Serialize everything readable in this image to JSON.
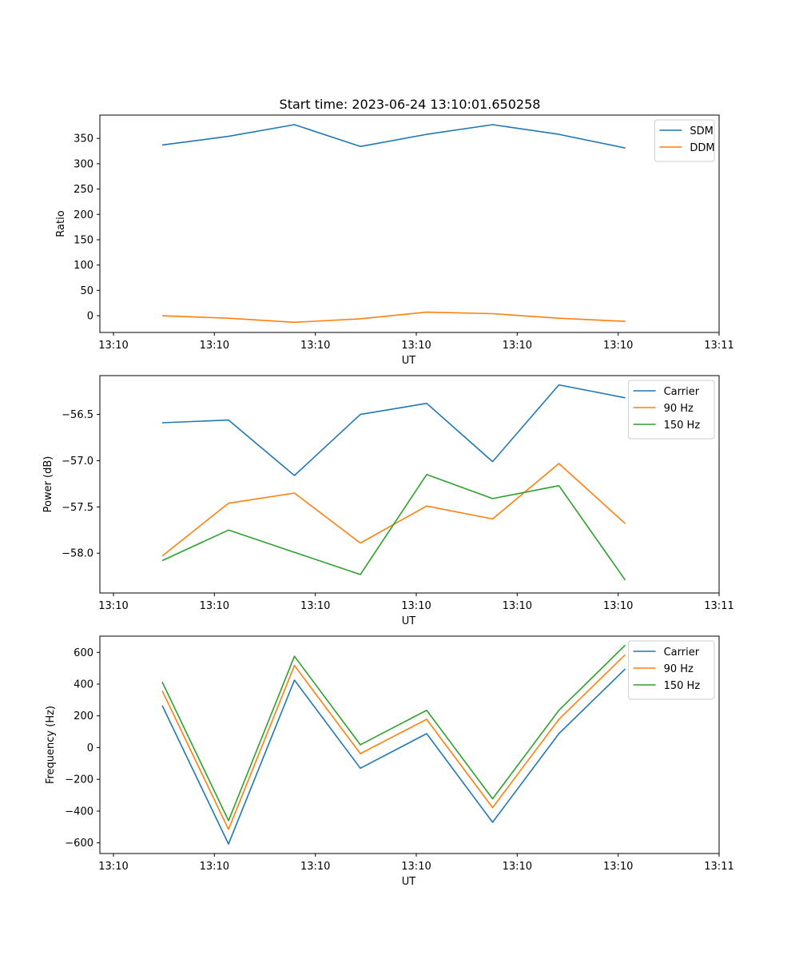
{
  "figure_title": "Start time: 2023-06-24 13:10:01.650258",
  "colors": {
    "blue": "#1f77b4",
    "orange": "#ff7f0e",
    "green": "#2ca02c"
  },
  "chart_data": [
    {
      "type": "line",
      "title": "Start time: 2023-06-24 13:10:01.650258",
      "xlabel": "UT",
      "ylabel": "Ratio",
      "x_tick_labels": [
        "13:10",
        "13:10",
        "13:10",
        "13:10",
        "13:10",
        "13:10",
        "13:11"
      ],
      "y_ticks": [
        0,
        50,
        100,
        150,
        200,
        250,
        300,
        350
      ],
      "ylim": [
        -33,
        396
      ],
      "legend_position": "top-right",
      "series": [
        {
          "name": "SDM",
          "color": "#1f77b4",
          "values": [
            337,
            354,
            377,
            334,
            358,
            377,
            358,
            331
          ]
        },
        {
          "name": "DDM",
          "color": "#ff7f0e",
          "values": [
            0,
            -5,
            -13,
            -6,
            7,
            4,
            -5,
            -11
          ]
        }
      ]
    },
    {
      "type": "line",
      "xlabel": "UT",
      "ylabel": "Power (dB)",
      "x_tick_labels": [
        "13:10",
        "13:10",
        "13:10",
        "13:10",
        "13:10",
        "13:10",
        "13:11"
      ],
      "y_ticks": [
        -58.0,
        -57.5,
        -57.0,
        -56.5
      ],
      "y_tick_labels": [
        "−58.0",
        "−57.5",
        "−57.0",
        "−56.5"
      ],
      "ylim": [
        -58.43,
        -56.08
      ],
      "legend_position": "top-right",
      "series": [
        {
          "name": "Carrier",
          "color": "#1f77b4",
          "values": [
            -56.59,
            -56.56,
            -57.16,
            -56.5,
            -56.38,
            -57.01,
            -56.18,
            -56.32
          ]
        },
        {
          "name": "90 Hz",
          "color": "#ff7f0e",
          "values": [
            -58.03,
            -57.46,
            -57.35,
            -57.89,
            -57.49,
            -57.63,
            -57.03,
            -57.68
          ]
        },
        {
          "name": "150 Hz",
          "color": "#2ca02c",
          "values": [
            -58.08,
            -57.75,
            -57.99,
            -58.23,
            -57.15,
            -57.41,
            -57.27,
            -58.29
          ]
        }
      ]
    },
    {
      "type": "line",
      "xlabel": "UT",
      "ylabel": "Frequency (Hz)",
      "x_tick_labels": [
        "13:10",
        "13:10",
        "13:10",
        "13:10",
        "13:10",
        "13:10",
        "13:11"
      ],
      "y_ticks": [
        -600,
        -400,
        -200,
        0,
        200,
        400,
        600
      ],
      "y_tick_labels": [
        "−600",
        "−400",
        "−200",
        "0",
        "200",
        "400",
        "600"
      ],
      "ylim": [
        -667,
        702
      ],
      "legend_position": "top-right",
      "series": [
        {
          "name": "Carrier",
          "color": "#1f77b4",
          "values": [
            265,
            -607,
            425,
            -130,
            88,
            -470,
            88,
            495
          ]
        },
        {
          "name": "90 Hz",
          "color": "#ff7f0e",
          "values": [
            358,
            -515,
            517,
            -38,
            178,
            -378,
            178,
            585
          ]
        },
        {
          "name": "150 Hz",
          "color": "#2ca02c",
          "values": [
            413,
            -460,
            575,
            18,
            235,
            -322,
            235,
            645
          ]
        }
      ]
    }
  ]
}
